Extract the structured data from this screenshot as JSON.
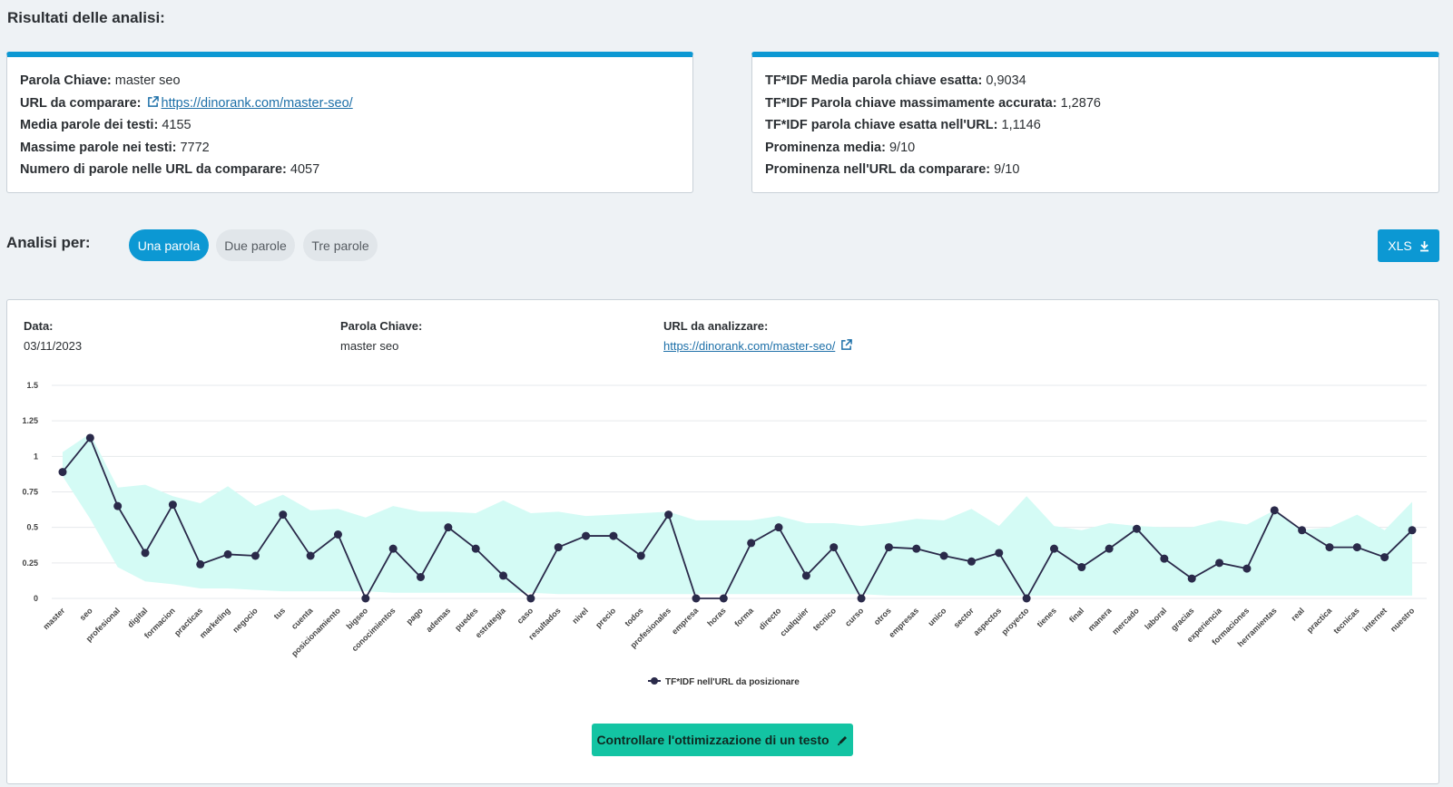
{
  "title": "Risultati delle analisi:",
  "summary_left": [
    {
      "label": "Parola Chiave:",
      "value": "master seo"
    },
    {
      "label": "URL da comparare:",
      "value": "https://dinorank.com/master-seo/",
      "link": true
    },
    {
      "label": "Media parole dei testi:",
      "value": "4155"
    },
    {
      "label": "Massime parole nei testi:",
      "value": "7772"
    },
    {
      "label": "Numero di parole nelle URL da comparare:",
      "value": "4057"
    }
  ],
  "summary_right": [
    {
      "label": "TF*IDF Media parola chiave esatta:",
      "value": "0,9034"
    },
    {
      "label": "TF*IDF Parola chiave massimamente accurata:",
      "value": "1,2876"
    },
    {
      "label": "TF*IDF parola chiave esatta nell'URL:",
      "value": "1,1146"
    },
    {
      "label": "Prominenza media:",
      "value": "9/10"
    },
    {
      "label": "Prominenza nell'URL da comparare:",
      "value": "9/10"
    }
  ],
  "analysis": {
    "label": "Analisi per:",
    "tabs": [
      {
        "label": "Una parola",
        "active": true
      },
      {
        "label": "Due parole",
        "active": false
      },
      {
        "label": "Tre parole",
        "active": false
      }
    ],
    "export_label": "XLS"
  },
  "details": {
    "date_label": "Data:",
    "date_value": "03/11/2023",
    "keyword_label": "Parola Chiave:",
    "keyword_value": "master seo",
    "url_label": "URL da analizzare:",
    "url_value": "https://dinorank.com/master-seo/"
  },
  "cta_label": "Controllare l'ottimizzazione di un testo",
  "colors": {
    "accent": "#0c98d3",
    "band": "#d4fbf5",
    "line": "#2a2a4a",
    "cta": "#13c4a3"
  },
  "chart_data": {
    "type": "line",
    "y_ticks": [
      "1.5",
      "1.25",
      "1",
      "0.75",
      "0.5",
      "0.25",
      "0"
    ],
    "ylim": [
      0,
      1.5
    ],
    "categories": [
      "master",
      "seo",
      "profesional",
      "digital",
      "formacion",
      "practicas",
      "marketing",
      "negocio",
      "tus",
      "cuenta",
      "posicionamiento",
      "bigseo",
      "conocimientos",
      "pago",
      "ademas",
      "puedes",
      "estrategia",
      "caso",
      "resultados",
      "nivel",
      "precio",
      "todos",
      "profesionales",
      "empresa",
      "horas",
      "forma",
      "directo",
      "cualquier",
      "tecnico",
      "curso",
      "otros",
      "empresas",
      "unico",
      "sector",
      "aspectos",
      "proyecto",
      "tienes",
      "final",
      "manera",
      "mercado",
      "laboral",
      "gracias",
      "experiencia",
      "formaciones",
      "herramientas",
      "real",
      "practica",
      "tecnicas",
      "internet",
      "nuestro"
    ],
    "series": [
      {
        "name": "TF*IDF nell'URL da posizionare",
        "values": [
          0.89,
          1.13,
          0.65,
          0.32,
          0.66,
          0.24,
          0.31,
          0.3,
          0.59,
          0.3,
          0.45,
          0.0,
          0.35,
          0.15,
          0.5,
          0.35,
          0.16,
          0.0,
          0.36,
          0.44,
          0.44,
          0.3,
          0.59,
          0.0,
          0.0,
          0.39,
          0.5,
          0.16,
          0.36,
          0.0,
          0.36,
          0.35,
          0.3,
          0.26,
          0.32,
          0.0,
          0.35,
          0.22,
          0.35,
          0.49,
          0.28,
          0.14,
          0.25,
          0.21,
          0.62,
          0.48,
          0.36,
          0.36,
          0.29,
          0.48
        ]
      }
    ],
    "band_upper": [
      1.03,
      1.16,
      0.78,
      0.8,
      0.72,
      0.67,
      0.79,
      0.65,
      0.73,
      0.62,
      0.63,
      0.57,
      0.65,
      0.61,
      0.61,
      0.6,
      0.69,
      0.6,
      0.61,
      0.58,
      0.59,
      0.6,
      0.61,
      0.55,
      0.55,
      0.55,
      0.58,
      0.53,
      0.53,
      0.51,
      0.53,
      0.56,
      0.55,
      0.63,
      0.51,
      0.72,
      0.51,
      0.48,
      0.53,
      0.51,
      0.5,
      0.5,
      0.55,
      0.52,
      0.62,
      0.48,
      0.5,
      0.59,
      0.48,
      0.68
    ],
    "band_lower": [
      0.86,
      0.56,
      0.22,
      0.12,
      0.1,
      0.07,
      0.07,
      0.06,
      0.05,
      0.05,
      0.05,
      0.05,
      0.04,
      0.04,
      0.04,
      0.04,
      0.04,
      0.04,
      0.03,
      0.03,
      0.03,
      0.03,
      0.03,
      0.03,
      0.03,
      0.03,
      0.03,
      0.03,
      0.03,
      0.03,
      0.02,
      0.02,
      0.02,
      0.02,
      0.02,
      0.02,
      0.02,
      0.02,
      0.02,
      0.02,
      0.02,
      0.02,
      0.02,
      0.02,
      0.02,
      0.02,
      0.02,
      0.02,
      0.02,
      0.02
    ],
    "legend_position": "bottom",
    "grid": true
  }
}
